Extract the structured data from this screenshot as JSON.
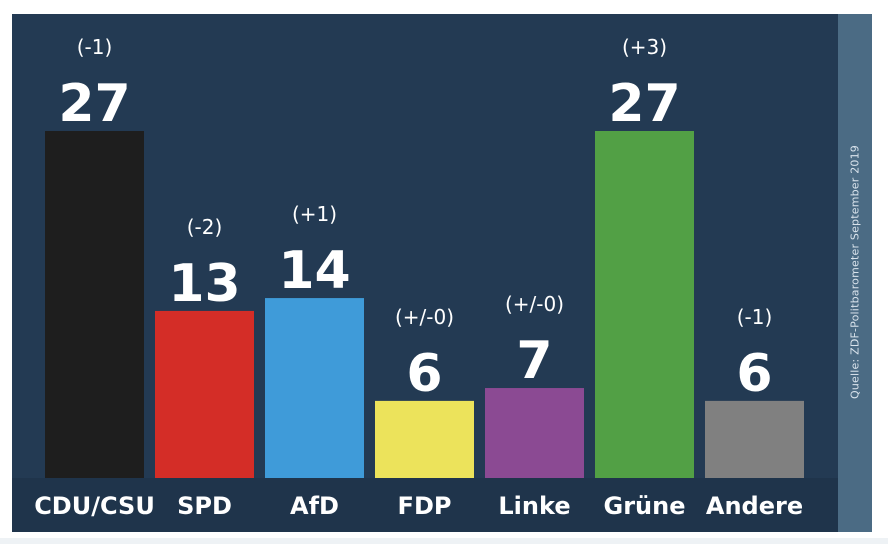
{
  "chart_data": {
    "type": "bar",
    "categories": [
      "CDU/CSU",
      "SPD",
      "AfD",
      "FDP",
      "Linke",
      "Grüne",
      "Andere"
    ],
    "values": [
      27,
      13,
      14,
      6,
      7,
      27,
      6
    ],
    "changes": [
      "(-1)",
      "(-2)",
      "(+1)",
      "(+/-0)",
      "(+/-0)",
      "(+3)",
      "(-1)"
    ],
    "colors": [
      "#1e1e1e",
      "#d42d27",
      "#3f9bd9",
      "#ece35b",
      "#8b4a93",
      "#52a045",
      "#808080"
    ],
    "ylim": [
      0,
      27
    ],
    "grid": false,
    "legend": "none"
  },
  "source": "Quelle: ZDF-Politbarometer September 2019"
}
